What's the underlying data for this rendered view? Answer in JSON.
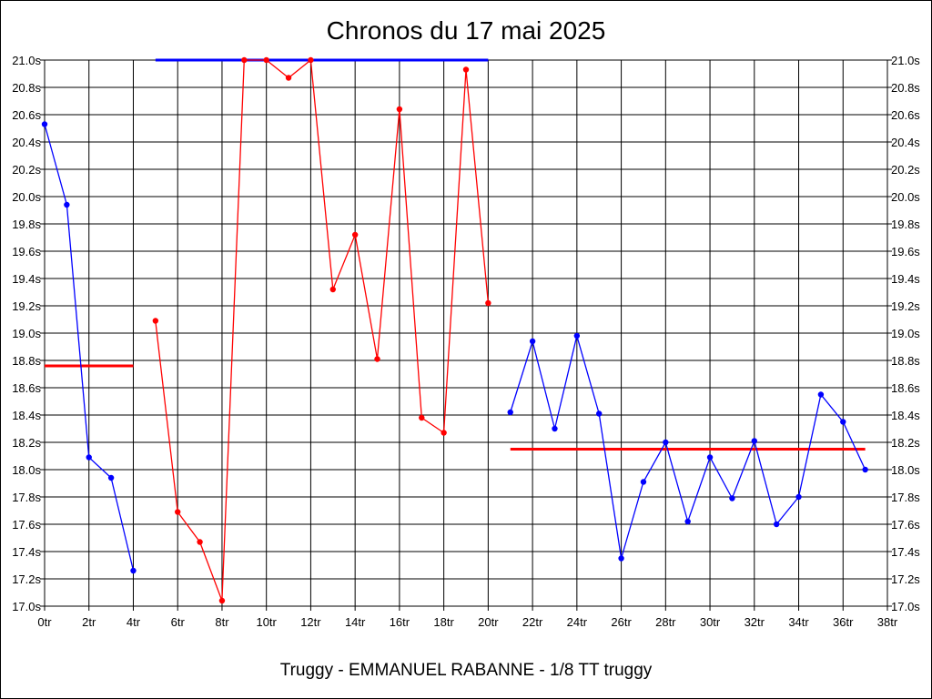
{
  "chart_data": {
    "type": "line",
    "title": "Chronos du 17 mai 2025",
    "caption": "Truggy - EMMANUEL RABANNE - 1/8 TT truggy",
    "xlim": [
      0,
      38
    ],
    "ylim": [
      17.0,
      21.0
    ],
    "grid": true,
    "x_ticks": [
      "0tr",
      "2tr",
      "4tr",
      "6tr",
      "8tr",
      "10tr",
      "12tr",
      "14tr",
      "16tr",
      "18tr",
      "20tr",
      "22tr",
      "24tr",
      "26tr",
      "28tr",
      "30tr",
      "32tr",
      "34tr",
      "36tr",
      "38tr"
    ],
    "y_ticks": [
      "17.0s",
      "17.2s",
      "17.4s",
      "17.6s",
      "17.8s",
      "18.0s",
      "18.2s",
      "18.4s",
      "18.6s",
      "18.8s",
      "19.0s",
      "19.2s",
      "19.4s",
      "19.6s",
      "19.8s",
      "20.0s",
      "20.2s",
      "20.4s",
      "20.6s",
      "20.8s",
      "21.0s"
    ],
    "series": [
      {
        "color": "#0000ff",
        "points": [
          [
            0,
            20.53
          ],
          [
            1,
            19.94
          ],
          [
            2,
            18.09
          ],
          [
            3,
            17.94
          ],
          [
            4,
            17.26
          ]
        ]
      },
      {
        "color": "#ff0000",
        "points": [
          [
            5,
            19.09
          ],
          [
            6,
            17.69
          ],
          [
            7,
            17.47
          ],
          [
            8,
            17.04
          ],
          [
            9,
            21.0
          ],
          [
            10,
            21.0
          ],
          [
            11,
            20.87
          ],
          [
            12,
            21.0
          ],
          [
            13,
            19.32
          ],
          [
            14,
            19.72
          ],
          [
            15,
            18.81
          ],
          [
            16,
            20.64
          ],
          [
            17,
            18.38
          ],
          [
            18,
            18.27
          ],
          [
            19,
            20.93
          ],
          [
            20,
            19.22
          ]
        ]
      },
      {
        "color": "#0000ff",
        "points": [
          [
            21,
            18.42
          ],
          [
            22,
            18.94
          ],
          [
            23,
            18.3
          ],
          [
            24,
            18.98
          ],
          [
            25,
            18.41
          ],
          [
            26,
            17.35
          ],
          [
            27,
            17.91
          ],
          [
            28,
            18.2
          ],
          [
            29,
            17.62
          ],
          [
            30,
            18.09
          ],
          [
            31,
            17.79
          ],
          [
            32,
            18.21
          ],
          [
            33,
            17.6
          ],
          [
            34,
            17.8
          ],
          [
            35,
            18.55
          ],
          [
            36,
            18.35
          ],
          [
            37,
            18.0
          ]
        ]
      }
    ],
    "averages": [
      {
        "color": "#ff0000",
        "x": [
          0,
          4
        ],
        "y": 18.76
      },
      {
        "color": "#0000ff",
        "x": [
          5,
          20
        ],
        "y": 21.0
      },
      {
        "color": "#ff0000",
        "x": [
          21,
          37
        ],
        "y": 18.15
      }
    ]
  }
}
